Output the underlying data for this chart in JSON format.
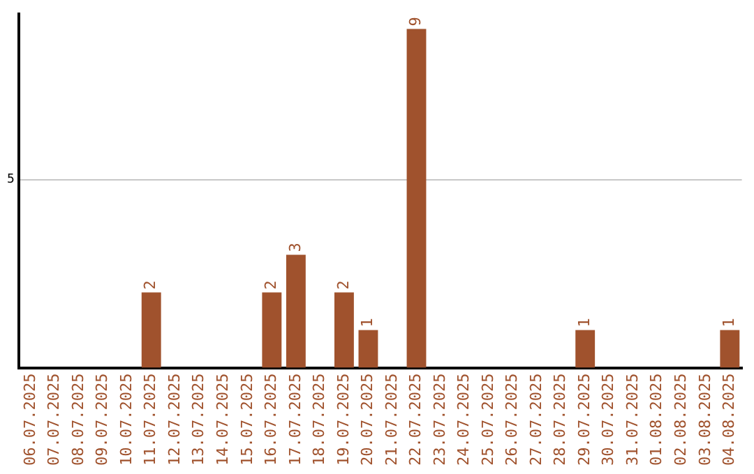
{
  "chart_data": {
    "type": "bar",
    "categories": [
      "06.07.2025",
      "07.07.2025",
      "08.07.2025",
      "09.07.2025",
      "10.07.2025",
      "11.07.2025",
      "12.07.2025",
      "13.07.2025",
      "14.07.2025",
      "15.07.2025",
      "16.07.2025",
      "17.07.2025",
      "18.07.2025",
      "19.07.2025",
      "20.07.2025",
      "21.07.2025",
      "22.07.2025",
      "23.07.2025",
      "24.07.2025",
      "25.07.2025",
      "26.07.2025",
      "27.07.2025",
      "28.07.2025",
      "29.07.2025",
      "30.07.2025",
      "31.07.2025",
      "01.08.2025",
      "02.08.2025",
      "03.08.2025",
      "04.08.2025"
    ],
    "values": [
      0,
      0,
      0,
      0,
      0,
      2,
      0,
      0,
      0,
      0,
      2,
      3,
      0,
      2,
      1,
      0,
      9,
      0,
      0,
      0,
      0,
      0,
      0,
      1,
      0,
      0,
      0,
      0,
      0,
      1
    ],
    "value_labels": [
      null,
      null,
      null,
      null,
      null,
      "2",
      null,
      null,
      null,
      null,
      "2",
      "3",
      null,
      "2",
      "1",
      null,
      "9",
      null,
      null,
      null,
      null,
      null,
      null,
      "1",
      null,
      null,
      null,
      null,
      null,
      "1"
    ],
    "color": "#a0522d",
    "ylim": [
      0,
      9.4
    ],
    "yticks": [
      5
    ],
    "grid": "y",
    "legend": false
  }
}
